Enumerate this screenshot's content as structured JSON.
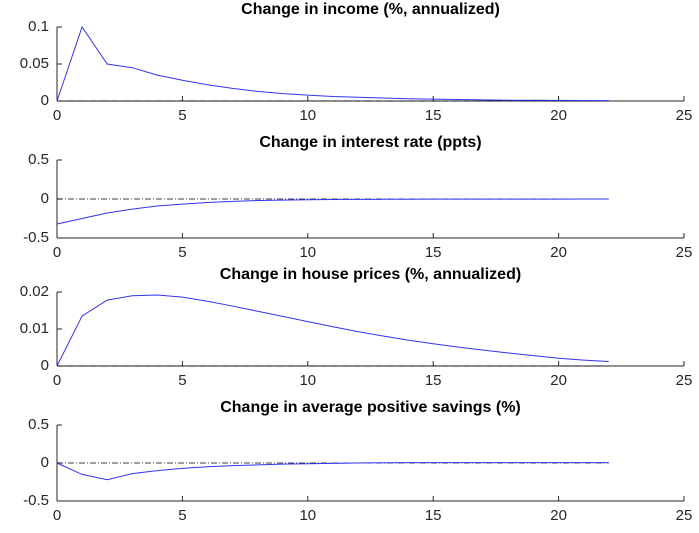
{
  "chart_data": [
    {
      "type": "line",
      "title": "Change in income (%, annualized)",
      "x": [
        0,
        1,
        2,
        3,
        4,
        5,
        6,
        7,
        8,
        9,
        10,
        11,
        12,
        13,
        14,
        15,
        16,
        17,
        18,
        19,
        20,
        21,
        22
      ],
      "xlim": [
        0,
        25
      ],
      "xticks": [
        0,
        5,
        10,
        15,
        20,
        25
      ],
      "ylim": [
        0,
        0.1
      ],
      "yticks": [
        0,
        0.05,
        0.1
      ],
      "zero_line": true,
      "series": [
        {
          "color": "#3333ee",
          "values": [
            0,
            0.1,
            0.05,
            0.045,
            0.035,
            0.028,
            0.022,
            0.017,
            0.013,
            0.01,
            0.008,
            0.006,
            0.005,
            0.004,
            0.003,
            0.0025,
            0.002,
            0.0015,
            0.001,
            0.001,
            0.0008,
            0.0006,
            0.0005
          ]
        }
      ]
    },
    {
      "type": "line",
      "title": "Change in interest rate (ppts)",
      "x": [
        0,
        1,
        2,
        3,
        4,
        5,
        6,
        7,
        8,
        9,
        10,
        11,
        12,
        13,
        14,
        15,
        16,
        17,
        18,
        19,
        20,
        21,
        22
      ],
      "xlim": [
        0,
        25
      ],
      "xticks": [
        0,
        5,
        10,
        15,
        20,
        25
      ],
      "ylim": [
        -0.5,
        0.5
      ],
      "yticks": [
        -0.5,
        0,
        0.5
      ],
      "zero_line": true,
      "series": [
        {
          "color": "#3333ee",
          "values": [
            -0.32,
            -0.25,
            -0.18,
            -0.13,
            -0.09,
            -0.065,
            -0.045,
            -0.03,
            -0.02,
            -0.014,
            -0.01,
            -0.007,
            -0.005,
            -0.004,
            -0.003,
            -0.002,
            -0.002,
            -0.001,
            -0.001,
            -0.001,
            -0.001,
            0,
            0
          ]
        }
      ]
    },
    {
      "type": "line",
      "title": "Change in house prices (%, annualized)",
      "x": [
        0,
        1,
        2,
        3,
        4,
        5,
        6,
        7,
        8,
        9,
        10,
        11,
        12,
        13,
        14,
        15,
        16,
        17,
        18,
        19,
        20,
        21,
        22
      ],
      "xlim": [
        0,
        25
      ],
      "xticks": [
        0,
        5,
        10,
        15,
        20,
        25
      ],
      "ylim": [
        0,
        0.02
      ],
      "yticks": [
        0,
        0.01,
        0.02
      ],
      "zero_line": true,
      "series": [
        {
          "color": "#3333ee",
          "values": [
            0,
            0.0135,
            0.0178,
            0.019,
            0.0192,
            0.0186,
            0.0175,
            0.0162,
            0.0148,
            0.0134,
            0.012,
            0.0106,
            0.0093,
            0.0081,
            0.007,
            0.006,
            0.0051,
            0.0043,
            0.0035,
            0.0028,
            0.0021,
            0.0016,
            0.0012
          ]
        }
      ]
    },
    {
      "type": "line",
      "title": "Change in average positive savings (%)",
      "x": [
        0,
        1,
        2,
        3,
        4,
        5,
        6,
        7,
        8,
        9,
        10,
        11,
        12,
        13,
        14,
        15,
        16,
        17,
        18,
        19,
        20,
        21,
        22
      ],
      "xlim": [
        0,
        25
      ],
      "xticks": [
        0,
        5,
        10,
        15,
        20,
        25
      ],
      "ylim": [
        -0.5,
        0.5
      ],
      "yticks": [
        -0.5,
        0,
        0.5
      ],
      "zero_line": true,
      "series": [
        {
          "color": "#3333ee",
          "values": [
            0,
            -0.15,
            -0.22,
            -0.14,
            -0.1,
            -0.07,
            -0.05,
            -0.035,
            -0.025,
            -0.015,
            -0.01,
            -0.005,
            0,
            0.003,
            0.005,
            0.005,
            0.005,
            0.005,
            0.005,
            0.005,
            0.005,
            0.005,
            0.005
          ]
        }
      ]
    }
  ]
}
